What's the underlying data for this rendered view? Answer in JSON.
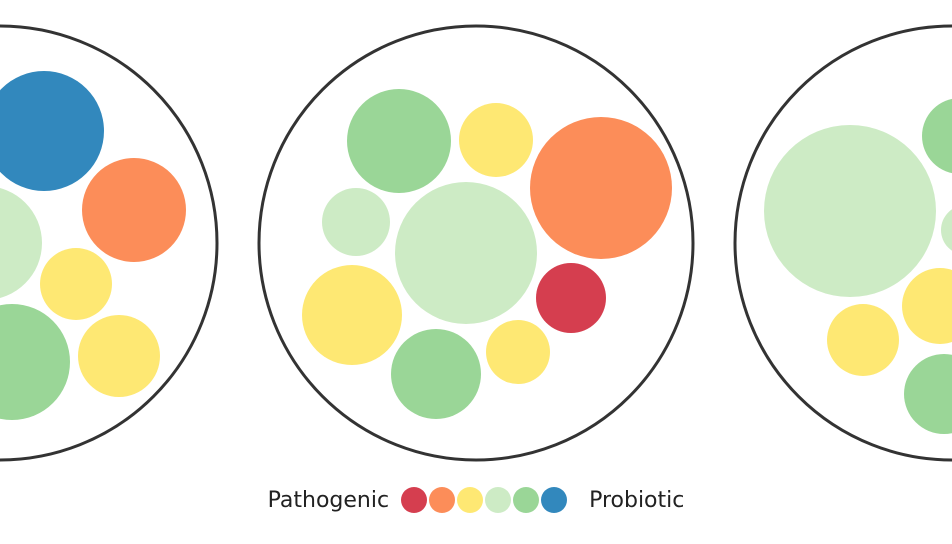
{
  "legend": {
    "left_label": "Pathogenic",
    "right_label": "Probiotic",
    "scale": [
      {
        "name": "pathogenic-strong",
        "color": "#d53e4f"
      },
      {
        "name": "pathogenic-moderate",
        "color": "#fc8d59"
      },
      {
        "name": "neutral-yellow",
        "color": "#fee873"
      },
      {
        "name": "neutral-pale-green",
        "color": "#cdebc5"
      },
      {
        "name": "probiotic-moderate",
        "color": "#9ad697"
      },
      {
        "name": "probiotic-strong",
        "color": "#3288bd"
      }
    ]
  },
  "outline_color": "#333333"
}
